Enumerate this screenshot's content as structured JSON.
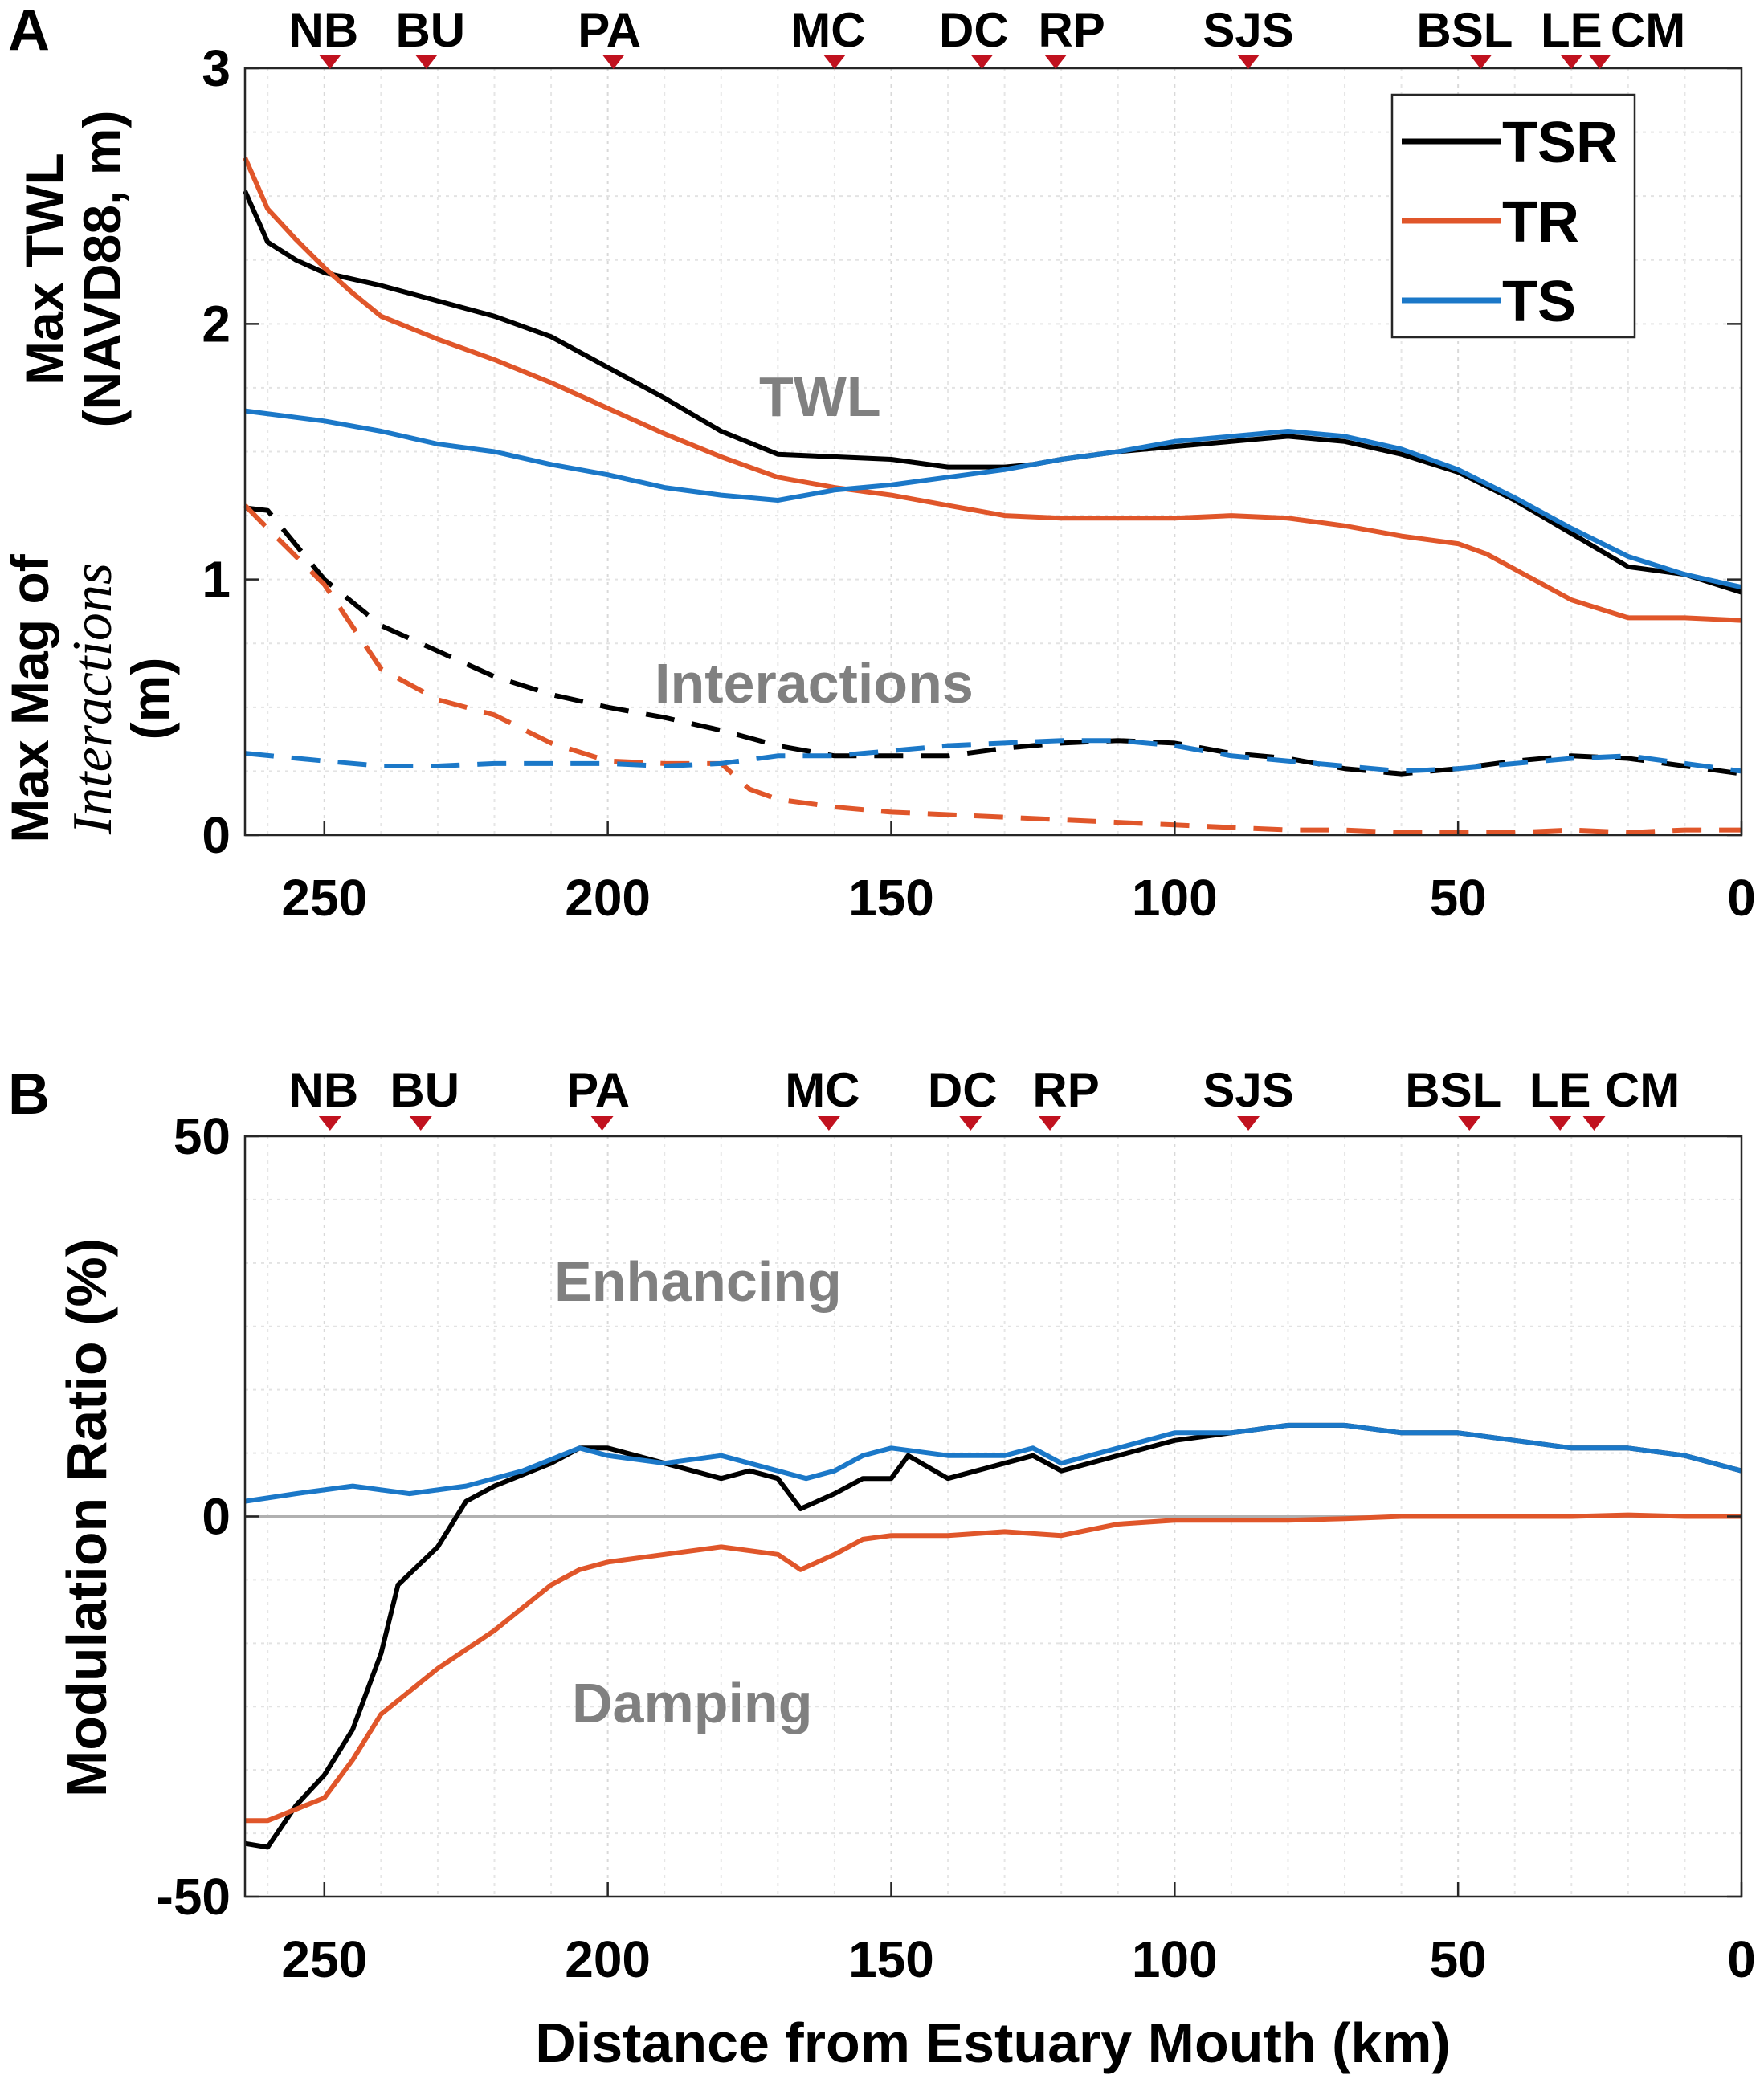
{
  "chart_data": [
    {
      "panel": "A",
      "type": "line",
      "x_reversed": true,
      "xlim": [
        264,
        0
      ],
      "ylim": [
        0,
        3
      ],
      "xticks": [
        "250",
        "200",
        "150",
        "100",
        "50",
        "0"
      ],
      "yticks": [
        "0",
        "1",
        "2",
        "3"
      ],
      "ylabel_top": {
        "line1": "Max TWL",
        "line2": "(NAVD88, m)"
      },
      "ylabel_bottom": {
        "line1_prefix": "Max Mag of",
        "line2_italic": "Interactions",
        "line3": "(m)"
      },
      "annotations": [
        "TWL",
        "Interactions"
      ],
      "stations": [
        {
          "name": "NB",
          "km": 249
        },
        {
          "name": "BU",
          "km": 232
        },
        {
          "name": "PA",
          "km": 199
        },
        {
          "name": "MC",
          "km": 160
        },
        {
          "name": "DC",
          "km": 134
        },
        {
          "name": "RP",
          "km": 121
        },
        {
          "name": "SJS",
          "km": 87
        },
        {
          "name": "BSL",
          "km": 46
        },
        {
          "name": "LE",
          "km": 30
        },
        {
          "name": "CM",
          "km": 25
        }
      ],
      "legend": {
        "placement": "top-right",
        "entries": [
          "TSR",
          "TR",
          "TS"
        ]
      },
      "colors": {
        "TSR": "#000000",
        "TR": "#e0562a",
        "TS": "#1b78c8"
      },
      "series": [
        {
          "name": "TSR",
          "style": "solid",
          "x": [
            264,
            260,
            255,
            250,
            240,
            230,
            220,
            210,
            200,
            190,
            180,
            170,
            160,
            150,
            140,
            130,
            125,
            120,
            110,
            100,
            90,
            80,
            70,
            60,
            50,
            40,
            30,
            20,
            10,
            0
          ],
          "y": [
            2.52,
            2.32,
            2.25,
            2.2,
            2.15,
            2.09,
            2.03,
            1.95,
            1.83,
            1.71,
            1.58,
            1.49,
            1.48,
            1.47,
            1.44,
            1.44,
            1.45,
            1.47,
            1.5,
            1.52,
            1.54,
            1.56,
            1.54,
            1.49,
            1.42,
            1.31,
            1.18,
            1.05,
            1.02,
            0.95
          ]
        },
        {
          "name": "TR",
          "style": "solid",
          "x": [
            264,
            260,
            255,
            250,
            245,
            240,
            230,
            220,
            210,
            200,
            190,
            180,
            170,
            160,
            150,
            140,
            130,
            120,
            110,
            100,
            90,
            80,
            70,
            60,
            50,
            45,
            40,
            30,
            20,
            10,
            0
          ],
          "y": [
            2.65,
            2.45,
            2.33,
            2.22,
            2.12,
            2.03,
            1.94,
            1.86,
            1.77,
            1.67,
            1.57,
            1.48,
            1.4,
            1.36,
            1.33,
            1.29,
            1.25,
            1.24,
            1.24,
            1.24,
            1.25,
            1.24,
            1.21,
            1.17,
            1.14,
            1.1,
            1.04,
            0.92,
            0.85,
            0.85,
            0.84
          ]
        },
        {
          "name": "TS",
          "style": "solid",
          "x": [
            264,
            250,
            240,
            230,
            220,
            210,
            200,
            190,
            180,
            170,
            160,
            150,
            140,
            130,
            120,
            110,
            100,
            90,
            80,
            70,
            60,
            50,
            40,
            30,
            20,
            10,
            0
          ],
          "y": [
            1.66,
            1.62,
            1.58,
            1.53,
            1.5,
            1.45,
            1.41,
            1.36,
            1.33,
            1.31,
            1.35,
            1.37,
            1.4,
            1.43,
            1.47,
            1.5,
            1.54,
            1.56,
            1.58,
            1.56,
            1.51,
            1.43,
            1.32,
            1.2,
            1.09,
            1.02,
            0.97
          ]
        },
        {
          "name": "TSR interactions",
          "style": "dashed",
          "x": [
            264,
            260,
            250,
            240,
            230,
            220,
            210,
            200,
            190,
            180,
            170,
            160,
            150,
            140,
            130,
            120,
            110,
            100,
            90,
            80,
            70,
            60,
            50,
            40,
            30,
            20,
            10,
            0
          ],
          "y": [
            1.28,
            1.27,
            1.0,
            0.82,
            0.72,
            0.62,
            0.55,
            0.5,
            0.46,
            0.41,
            0.35,
            0.31,
            0.31,
            0.31,
            0.34,
            0.36,
            0.37,
            0.36,
            0.32,
            0.3,
            0.26,
            0.24,
            0.26,
            0.29,
            0.31,
            0.3,
            0.27,
            0.24
          ]
        },
        {
          "name": "TR interactions",
          "style": "dashed",
          "x": [
            264,
            260,
            250,
            240,
            230,
            220,
            210,
            200,
            190,
            180,
            175,
            170,
            160,
            150,
            140,
            130,
            120,
            110,
            100,
            90,
            80,
            70,
            60,
            50,
            40,
            30,
            20,
            10,
            0
          ],
          "y": [
            1.29,
            1.2,
            0.98,
            0.65,
            0.53,
            0.47,
            0.36,
            0.29,
            0.28,
            0.28,
            0.18,
            0.14,
            0.11,
            0.09,
            0.08,
            0.07,
            0.06,
            0.05,
            0.04,
            0.03,
            0.02,
            0.02,
            0.01,
            0.01,
            0.01,
            0.02,
            0.01,
            0.02,
            0.02
          ]
        },
        {
          "name": "TS interactions",
          "style": "dashed",
          "x": [
            264,
            250,
            240,
            230,
            220,
            210,
            200,
            190,
            180,
            170,
            160,
            150,
            140,
            130,
            120,
            110,
            100,
            90,
            80,
            70,
            60,
            50,
            40,
            30,
            20,
            10,
            0
          ],
          "y": [
            0.32,
            0.29,
            0.27,
            0.27,
            0.28,
            0.28,
            0.28,
            0.27,
            0.28,
            0.31,
            0.31,
            0.33,
            0.35,
            0.36,
            0.37,
            0.37,
            0.35,
            0.31,
            0.29,
            0.27,
            0.25,
            0.26,
            0.28,
            0.3,
            0.31,
            0.28,
            0.25
          ]
        }
      ]
    },
    {
      "panel": "B",
      "type": "line",
      "x_reversed": true,
      "xlim": [
        264,
        0
      ],
      "ylim": [
        -50,
        50
      ],
      "xticks": [
        "250",
        "200",
        "150",
        "100",
        "50",
        "0"
      ],
      "yticks": [
        "-50",
        "0",
        "50"
      ],
      "ylabel": "Modulation Ratio (%)",
      "xlabel": "Distance from Estuary Mouth (km)",
      "annotations": [
        "Enhancing",
        "Damping"
      ],
      "stations": [
        {
          "name": "NB",
          "km": 249
        },
        {
          "name": "BU",
          "km": 233
        },
        {
          "name": "PA",
          "km": 201
        },
        {
          "name": "MC",
          "km": 161
        },
        {
          "name": "DC",
          "km": 136
        },
        {
          "name": "RP",
          "km": 122
        },
        {
          "name": "SJS",
          "km": 87
        },
        {
          "name": "BSL",
          "km": 48
        },
        {
          "name": "LE",
          "km": 32
        },
        {
          "name": "CM",
          "km": 26
        }
      ],
      "colors": {
        "TSR": "#000000",
        "TR": "#e0562a",
        "TS": "#1b78c8",
        "zero_line": "#b0b0b0"
      },
      "series": [
        {
          "name": "TSR",
          "x": [
            264,
            260,
            255,
            250,
            245,
            240,
            237,
            230,
            225,
            220,
            210,
            205,
            200,
            190,
            180,
            175,
            170,
            166,
            160,
            155,
            150,
            147,
            140,
            135,
            130,
            125,
            120,
            110,
            100,
            90,
            80,
            70,
            60,
            50,
            40,
            30,
            20,
            10,
            0
          ],
          "y": [
            -43,
            -43.5,
            -38,
            -34,
            -28,
            -18,
            -9,
            -4,
            2,
            4,
            7,
            9,
            9,
            7,
            5,
            6,
            5,
            1,
            3,
            5,
            5,
            8,
            5,
            6,
            7,
            8,
            6,
            8,
            10,
            11,
            12,
            12,
            11,
            11,
            10,
            9,
            9,
            8,
            6
          ]
        },
        {
          "name": "TR",
          "x": [
            264,
            260,
            250,
            245,
            240,
            230,
            220,
            210,
            205,
            200,
            190,
            180,
            170,
            166,
            160,
            155,
            150,
            140,
            130,
            120,
            110,
            100,
            90,
            80,
            70,
            60,
            50,
            40,
            30,
            20,
            10,
            0
          ],
          "y": [
            -40,
            -40,
            -37,
            -32,
            -26,
            -20,
            -15,
            -9,
            -7,
            -6,
            -5,
            -4,
            -5,
            -7,
            -5,
            -3,
            -2.5,
            -2.5,
            -2,
            -2.5,
            -1,
            -0.5,
            -0.5,
            -0.5,
            -0.3,
            0,
            0,
            0,
            0,
            0.2,
            0,
            0
          ]
        },
        {
          "name": "TS",
          "x": [
            264,
            255,
            245,
            235,
            225,
            215,
            205,
            200,
            190,
            180,
            170,
            165,
            160,
            155,
            150,
            140,
            130,
            125,
            120,
            110,
            100,
            90,
            80,
            70,
            60,
            50,
            40,
            30,
            20,
            10,
            0
          ],
          "y": [
            2,
            3,
            4,
            3,
            4,
            6,
            9,
            8,
            7,
            8,
            6,
            5,
            6,
            8,
            9,
            8,
            8,
            9,
            7,
            9,
            11,
            11,
            12,
            12,
            11,
            11,
            10,
            9,
            9,
            8,
            6
          ]
        }
      ]
    }
  ],
  "panel_labels": {
    "a": "A",
    "b": "B"
  },
  "text_labels": {
    "a_ylabel_top_1": "Max TWL",
    "a_ylabel_top_2": "(NAVD88, m)",
    "a_ylabel_bot_1": "Max Mag of",
    "a_ylabel_bot_2": "Interactions",
    "a_ylabel_bot_3": "(m)",
    "a_ann_twl": "TWL",
    "a_ann_inter": "Interactions",
    "b_ylabel": "Modulation Ratio (%)",
    "b_xlabel": "Distance from Estuary Mouth (km)",
    "b_ann_enh": "Enhancing",
    "b_ann_damp": "Damping"
  },
  "legend_labels": [
    "TSR",
    "TR",
    "TS"
  ]
}
